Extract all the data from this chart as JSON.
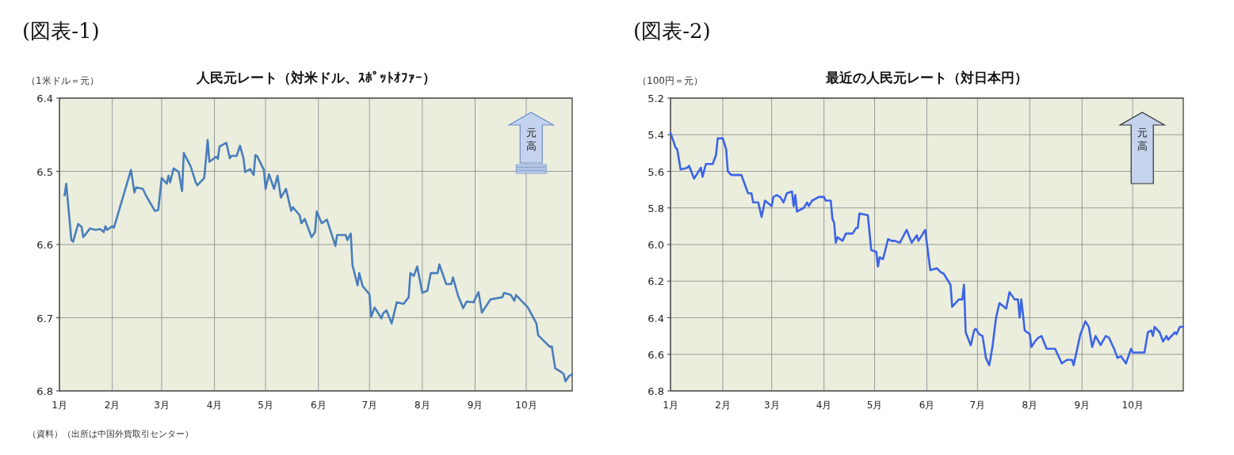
{
  "chart_data": [
    {
      "type": "line",
      "title": "(図表-1)",
      "subtitle": "人民元レート（対米ドル、ｽﾎﾟｯﾄｵﾌｧｰ）",
      "ylabel": "（1米ドル＝元）",
      "annotations": [
        "元高",
        "（資料）（出所は中国外貨取引センター）"
      ],
      "x": [
        "--01-04",
        "--01-05",
        "--01-08",
        "--01-09",
        "--01-12",
        "--01-14",
        "--01-15",
        "--01-19",
        "--01-22",
        "--01-25",
        "--01-27",
        "--01-28",
        "--01-29",
        "--02-01",
        "--02-02",
        "--02-12",
        "--02-14",
        "--02-15",
        "--02-19",
        "--02-21",
        "--02-26",
        "--02-28",
        "--03-01",
        "--03-04",
        "--03-05",
        "--03-06",
        "--03-08",
        "--03-11",
        "--03-13",
        "--03-14",
        "--03-18",
        "--03-21",
        "--03-22",
        "--03-26",
        "--03-28",
        "--03-29",
        "--04-02",
        "--04-03",
        "--04-04",
        "--04-08",
        "--04-10",
        "--04-11",
        "--04-14",
        "--04-16",
        "--04-18",
        "--04-19",
        "--04-22",
        "--04-24",
        "--04-25",
        "--04-26",
        "--04-30",
        "--05-01",
        "--05-03",
        "--05-06",
        "--05-08",
        "--05-10",
        "--05-13",
        "--05-16",
        "--05-17",
        "--05-21",
        "--05-22",
        "--05-24",
        "--05-28",
        "--05-30",
        "--05-31",
        "--06-03",
        "--06-06",
        "--06-11",
        "--06-12",
        "--06-17",
        "--06-18",
        "--06-20",
        "--06-21",
        "--06-24",
        "--06-25",
        "--06-27",
        "--07-01",
        "--07-02",
        "--07-04",
        "--07-08",
        "--07-09",
        "--07-11",
        "--07-14",
        "--07-17",
        "--07-21",
        "--07-24",
        "--07-25",
        "--07-27",
        "--07-29",
        "--08-01",
        "--08-04",
        "--08-06",
        "--08-10",
        "--08-11",
        "--08-15",
        "--08-18",
        "--08-19",
        "--08-22",
        "--08-25",
        "--08-27",
        "--08-31",
        "--09-03",
        "--09-05",
        "--09-10",
        "--09-17",
        "--09-18",
        "--09-22",
        "--09-24",
        "--09-25",
        "--10-02",
        "--10-07",
        "--10-08",
        "--10-11",
        "--10-15",
        "--10-16",
        "--10-18",
        "--10-22",
        "--10-23",
        "--10-24",
        "--10-26",
        "--10-28"
      ],
      "series": [
        {
          "color": "#4a7ebb",
          "values": [
            6.533,
            6.517,
            6.594,
            6.596,
            6.572,
            6.576,
            6.59,
            6.578,
            6.58,
            6.579,
            6.583,
            6.575,
            6.58,
            6.575,
            6.577,
            6.498,
            6.529,
            6.522,
            6.524,
            6.534,
            6.554,
            6.553,
            6.509,
            6.517,
            6.506,
            6.515,
            6.496,
            6.501,
            6.527,
            6.475,
            6.493,
            6.515,
            6.519,
            6.509,
            6.457,
            6.487,
            6.48,
            6.483,
            6.466,
            6.461,
            6.482,
            6.479,
            6.479,
            6.465,
            6.482,
            6.501,
            6.497,
            6.505,
            6.478,
            6.479,
            6.498,
            6.524,
            6.504,
            6.524,
            6.506,
            6.536,
            6.524,
            6.554,
            6.549,
            6.56,
            6.571,
            6.565,
            6.59,
            6.583,
            6.555,
            6.571,
            6.566,
            6.602,
            6.587,
            6.587,
            6.594,
            6.585,
            6.628,
            6.656,
            6.639,
            6.657,
            6.668,
            6.699,
            6.686,
            6.701,
            6.694,
            6.69,
            6.708,
            6.679,
            6.681,
            6.672,
            6.639,
            6.643,
            6.63,
            6.666,
            6.663,
            6.639,
            6.639,
            6.627,
            6.654,
            6.654,
            6.645,
            6.67,
            6.687,
            6.678,
            6.679,
            6.665,
            6.693,
            6.675,
            6.672,
            6.666,
            6.669,
            6.677,
            6.669,
            6.686,
            6.708,
            6.724,
            6.731,
            6.74,
            6.739,
            6.769,
            6.775,
            6.777,
            6.787,
            6.78,
            6.777
          ]
        }
      ],
      "xlim": [
        "--01-01",
        "--10-28"
      ],
      "xticks": [
        {
          "value": "--01-01",
          "label": "1月"
        },
        {
          "value": "--02-01",
          "label": "2月"
        },
        {
          "value": "--03-01",
          "label": "3月"
        },
        {
          "value": "--04-01",
          "label": "4月"
        },
        {
          "value": "--05-01",
          "label": "5月"
        },
        {
          "value": "--06-01",
          "label": "6月"
        },
        {
          "value": "--07-01",
          "label": "7月"
        },
        {
          "value": "--08-01",
          "label": "8月"
        },
        {
          "value": "--09-01",
          "label": "9月"
        },
        {
          "value": "--10-01",
          "label": "10月"
        }
      ],
      "ylim": [
        6.8,
        6.4
      ],
      "yticks": [
        6.4,
        6.5,
        6.6,
        6.7,
        6.8
      ],
      "grid": true,
      "marker": "none",
      "line_style": "solid"
    },
    {
      "type": "line",
      "title": "(図表-2)",
      "subtitle": "最近の人民元レート（対日本円）",
      "ylabel": "（100円＝元）",
      "annotations": [
        "元高"
      ],
      "x": [
        "--01-01",
        "--01-04",
        "--01-05",
        "--01-07",
        "--01-11",
        "--01-12",
        "--01-15",
        "--01-19",
        "--01-20",
        "--01-22",
        "--01-26",
        "--01-28",
        "--01-29",
        "--02-01",
        "--02-03",
        "--02-04",
        "--02-06",
        "--02-12",
        "--02-16",
        "--02-18",
        "--02-19",
        "--02-22",
        "--02-24",
        "--02-26",
        "--03-01",
        "--03-02",
        "--03-04",
        "--03-06",
        "--03-08",
        "--03-10",
        "--03-13",
        "--03-14",
        "--03-15",
        "--03-16",
        "--03-20",
        "--03-22",
        "--03-23",
        "--03-25",
        "--03-29",
        "--04-01",
        "--04-02",
        "--04-05",
        "--04-06",
        "--04-07",
        "--04-08",
        "--04-09",
        "--04-12",
        "--04-14",
        "--04-18",
        "--04-20",
        "--04-21",
        "--04-22",
        "--04-27",
        "--04-29",
        "--05-02",
        "--05-03",
        "--05-04",
        "--05-06",
        "--05-09",
        "--05-11",
        "--05-13",
        "--05-16",
        "--05-20",
        "--05-23",
        "--05-26",
        "--05-27",
        "--05-31",
        "--06-03",
        "--06-07",
        "--06-09",
        "--06-11",
        "--06-15",
        "--06-16",
        "--06-20",
        "--06-22",
        "--06-23",
        "--06-24",
        "--06-27",
        "--06-29",
        "--06-30",
        "--07-02",
        "--07-04",
        "--07-06",
        "--07-08",
        "--07-10",
        "--07-12",
        "--07-14",
        "--07-18",
        "--07-20",
        "--07-23",
        "--07-25",
        "--07-26",
        "--07-27",
        "--07-29",
        "--08-01",
        "--08-02",
        "--08-04",
        "--08-06",
        "--08-08",
        "--08-11",
        "--08-16",
        "--08-20",
        "--08-23",
        "--08-26",
        "--08-27",
        "--08-31",
        "--09-03",
        "--09-05",
        "--09-07",
        "--09-09",
        "--09-12",
        "--09-15",
        "--09-17",
        "--09-20",
        "--09-22",
        "--09-24",
        "--09-27",
        "--09-30",
        "--10-01",
        "--10-08",
        "--10-10",
        "--10-12",
        "--10-13",
        "--10-14",
        "--10-17",
        "--10-19",
        "--10-21",
        "--10-22",
        "--10-26",
        "--10-27",
        "--10-29",
        "--10-31"
      ],
      "series": [
        {
          "color": "#3c64e6",
          "values": [
            5.39,
            5.47,
            5.48,
            5.59,
            5.58,
            5.57,
            5.64,
            5.58,
            5.63,
            5.56,
            5.56,
            5.51,
            5.42,
            5.42,
            5.48,
            5.6,
            5.62,
            5.62,
            5.72,
            5.72,
            5.77,
            5.77,
            5.85,
            5.76,
            5.79,
            5.74,
            5.73,
            5.74,
            5.77,
            5.72,
            5.71,
            5.79,
            5.73,
            5.82,
            5.8,
            5.77,
            5.79,
            5.76,
            5.74,
            5.74,
            5.76,
            5.76,
            5.86,
            5.88,
            5.99,
            5.96,
            5.98,
            5.94,
            5.94,
            5.91,
            5.91,
            5.83,
            5.84,
            6.03,
            6.04,
            6.12,
            6.07,
            6.08,
            5.97,
            5.98,
            5.98,
            5.99,
            5.92,
            5.99,
            5.95,
            5.98,
            5.92,
            6.14,
            6.13,
            6.15,
            6.16,
            6.22,
            6.34,
            6.3,
            6.3,
            6.22,
            6.48,
            6.55,
            6.47,
            6.46,
            6.49,
            6.5,
            6.62,
            6.66,
            6.55,
            6.4,
            6.32,
            6.35,
            6.26,
            6.3,
            6.3,
            6.4,
            6.3,
            6.47,
            6.49,
            6.56,
            6.53,
            6.51,
            6.5,
            6.57,
            6.57,
            6.65,
            6.63,
            6.63,
            6.66,
            6.49,
            6.42,
            6.45,
            6.56,
            6.5,
            6.55,
            6.5,
            6.51,
            6.57,
            6.62,
            6.61,
            6.65,
            6.57,
            6.59,
            6.59,
            6.48,
            6.47,
            6.5,
            6.45,
            6.48,
            6.53,
            6.5,
            6.52,
            6.48,
            6.49,
            6.45,
            6.45
          ]
        }
      ],
      "xlim": [
        "--01-01",
        "--10-31"
      ],
      "xticks": [
        {
          "value": "--01-01",
          "label": "1月"
        },
        {
          "value": "--02-01",
          "label": "2月"
        },
        {
          "value": "--03-01",
          "label": "3月"
        },
        {
          "value": "--04-01",
          "label": "4月"
        },
        {
          "value": "--05-01",
          "label": "5月"
        },
        {
          "value": "--06-01",
          "label": "6月"
        },
        {
          "value": "--07-01",
          "label": "7月"
        },
        {
          "value": "--08-01",
          "label": "8月"
        },
        {
          "value": "--09-01",
          "label": "9月"
        },
        {
          "value": "--10-01",
          "label": "10月"
        }
      ],
      "ylim": [
        6.8,
        5.2
      ],
      "yticks": [
        5.2,
        5.4,
        5.6,
        5.8,
        {
          "value": 6,
          "label": "6.0"
        },
        6.2,
        6.4,
        6.6,
        6.8
      ],
      "grid": true,
      "marker": "none",
      "line_style": "solid"
    }
  ]
}
